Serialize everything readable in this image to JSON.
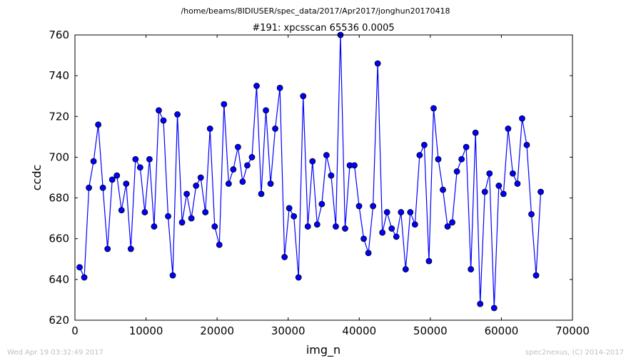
{
  "chart_data": {
    "type": "line",
    "suptitle": "/home/beams/8IDIUSER/spec_data/2017/Apr2017/jonghun20170418",
    "title": "#191: xpcsscan 65536 0.0005",
    "xlabel": "img_n",
    "ylabel": "ccdc",
    "xlim": [
      0,
      70000
    ],
    "ylim": [
      620,
      760
    ],
    "xticks": [
      0,
      10000,
      20000,
      30000,
      40000,
      50000,
      60000,
      70000
    ],
    "yticks": [
      620,
      640,
      660,
      680,
      700,
      720,
      740,
      760
    ],
    "grid": false,
    "series_color": "#0000ff",
    "series": [
      {
        "x": [
          655,
          1311,
          1966,
          2621,
          3277,
          3932,
          4588,
          5243,
          5898,
          6554,
          7209,
          7864,
          8520,
          9175,
          9830,
          10486,
          11141,
          11796,
          12452,
          13107,
          13763,
          14418,
          15073,
          15729,
          16384,
          17039,
          17695,
          18350,
          19005,
          19661,
          20316,
          20972,
          21627,
          22282,
          22938,
          23593,
          24248,
          24904,
          25559,
          26214,
          26870,
          27525,
          28180,
          28836,
          29491,
          30147,
          30802,
          31457,
          32113,
          32768,
          33423,
          34079,
          34734,
          35389,
          36045,
          36700,
          37356,
          38011,
          38666,
          39322,
          39977,
          40632,
          41288,
          41943,
          42598,
          43254,
          43909,
          44564,
          45220,
          45875,
          46531,
          47186,
          47841,
          48497,
          49152,
          49807,
          50463,
          51118,
          51773,
          52429,
          53084,
          53740,
          54395,
          55050,
          55706,
          56361,
          57016,
          57672,
          58327,
          58982,
          59638,
          60293,
          60948,
          61604,
          62259,
          62915,
          63570,
          64225,
          64881,
          65536
        ],
        "y": [
          646,
          641,
          685,
          698,
          716,
          685,
          655,
          689,
          691,
          674,
          687,
          655,
          699,
          695,
          673,
          699,
          666,
          723,
          718,
          671,
          642,
          721,
          668,
          682,
          670,
          686,
          690,
          673,
          714,
          666,
          657,
          726,
          687,
          694,
          705,
          688,
          696,
          700,
          735,
          682,
          723,
          687,
          714,
          734,
          651,
          675,
          671,
          641,
          730,
          666,
          698,
          667,
          677,
          701,
          691,
          666,
          760,
          665,
          696,
          696,
          676,
          660,
          653,
          676,
          746,
          663,
          673,
          665,
          661,
          673,
          645,
          673,
          667,
          701,
          706,
          649,
          724,
          699,
          684,
          666,
          668,
          693,
          699,
          705,
          645,
          712,
          628,
          683,
          692,
          626,
          686,
          682,
          714,
          692,
          687,
          719,
          706,
          672,
          642,
          683
        ]
      }
    ]
  },
  "footer": {
    "left": "Wed Apr 19 03:32:49 2017",
    "right": "spec2nexus, (C) 2014-2017"
  }
}
